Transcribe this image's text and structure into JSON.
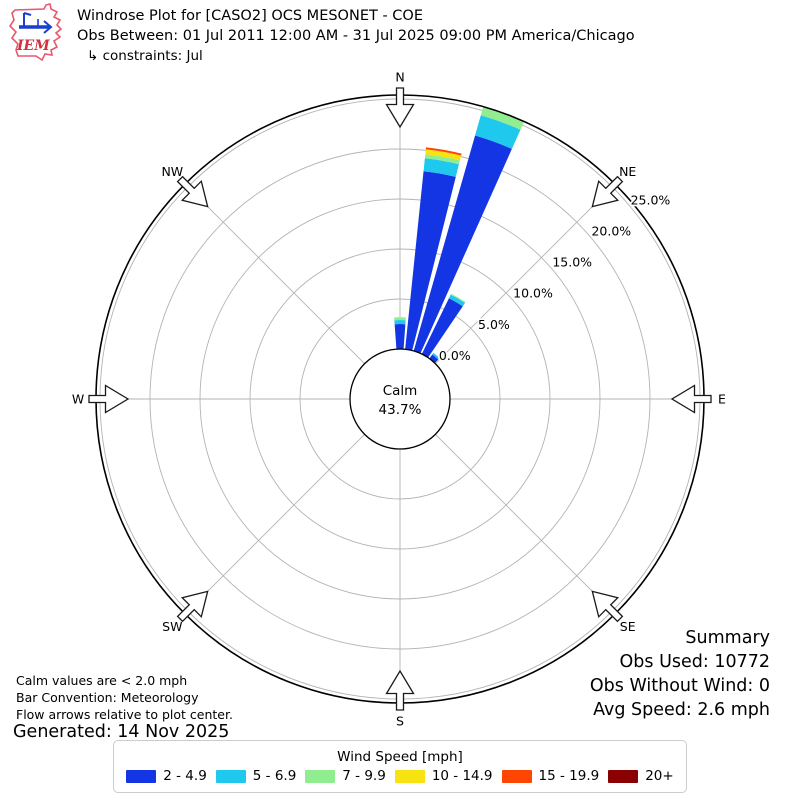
{
  "header": {
    "logo_text": "IEM",
    "title_line1": "Windrose Plot for [CASO2] OCS MESONET - COE",
    "title_line2": "Obs Between: 01 Jul 2011 12:00 AM - 31 Jul 2025 09:00 PM America/Chicago",
    "title_line3": "↳ constraints: Jul"
  },
  "chart_data": {
    "type": "windrose",
    "units": "mph",
    "compass_labels": [
      "N",
      "NE",
      "E",
      "SE",
      "S",
      "SW",
      "W",
      "NW"
    ],
    "radial_ticks_pct": [
      0.0,
      5.0,
      10.0,
      15.0,
      20.0,
      25.0
    ],
    "radial_tick_suffix": "%",
    "radial_axis_max_pct": 25.4,
    "sector_width_deg": 8.2,
    "calm_pct": 43.7,
    "calm_center_label": "Calm",
    "calm_center_value": "43.7%",
    "speed_bin_labels": [
      "2 - 4.9",
      "5 - 6.9",
      "7 - 9.9",
      "10 - 14.9",
      "15 - 19.9",
      "20+"
    ],
    "bin_colors": [
      "#1435e4",
      "#1ec9ed",
      "#90ee90",
      "#f7e212",
      "#ff4502",
      "#8b0000"
    ],
    "bars": [
      {
        "direction_deg": 0,
        "segments_pct": [
          2.5,
          0.4,
          0.25,
          0.05,
          0,
          0
        ],
        "total_pct": 3.2
      },
      {
        "direction_deg": 10,
        "segments_pct": [
          17.9,
          1.3,
          0.4,
          0.5,
          0.2,
          0
        ],
        "total_pct": 20.3
      },
      {
        "direction_deg": 20,
        "segments_pct": [
          22.4,
          2.1,
          0.9,
          0,
          0,
          0
        ],
        "total_pct": 25.4
      },
      {
        "direction_deg": 30,
        "segments_pct": [
          6.2,
          0.4,
          0.1,
          0,
          0,
          0
        ],
        "total_pct": 6.7
      },
      {
        "direction_deg": 40,
        "segments_pct": [
          0.5,
          0.2,
          0,
          0,
          0,
          0
        ],
        "total_pct": 0.7
      }
    ],
    "grid_color": "#b3b3b3",
    "spine_color": "#000000"
  },
  "annotations": {
    "calm_note": "Calm values are < 2.0 mph",
    "bar_convention": "Bar Convention: Meteorology",
    "flow_note": "Flow arrows relative to plot center.",
    "generated": "Generated: 14 Nov 2025"
  },
  "summary": {
    "title": "Summary",
    "obs_used": "Obs Used: 10772",
    "obs_without_wind": "Obs Without Wind: 0",
    "avg_speed": "Avg Speed: 2.6 mph"
  },
  "legend": {
    "title": "Wind Speed [mph]",
    "entries": [
      {
        "label": "2 - 4.9",
        "color": "#1435e4"
      },
      {
        "label": "5 - 6.9",
        "color": "#1ec9ed"
      },
      {
        "label": "7 - 9.9",
        "color": "#90ee90"
      },
      {
        "label": "10 - 14.9",
        "color": "#f7e212"
      },
      {
        "label": "15 - 19.9",
        "color": "#ff4502"
      },
      {
        "label": "20+",
        "color": "#8b0000"
      }
    ]
  }
}
